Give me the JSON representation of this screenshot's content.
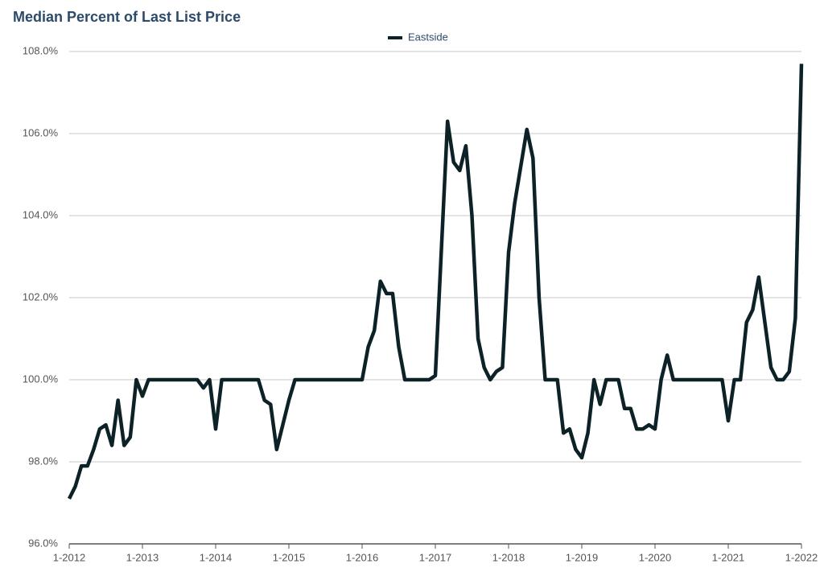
{
  "chart_data": {
    "type": "line",
    "title": "Median Percent of Last List Price",
    "categories": [
      "1-2012",
      null,
      null,
      null,
      null,
      null,
      null,
      null,
      null,
      null,
      null,
      null,
      "1-2013",
      null,
      null,
      null,
      null,
      null,
      null,
      null,
      null,
      null,
      null,
      null,
      "1-2014",
      null,
      null,
      null,
      null,
      null,
      null,
      null,
      null,
      null,
      null,
      null,
      "1-2015",
      null,
      null,
      null,
      null,
      null,
      null,
      null,
      null,
      null,
      null,
      null,
      "1-2016",
      null,
      null,
      null,
      null,
      null,
      null,
      null,
      null,
      null,
      null,
      null,
      "1-2017",
      null,
      null,
      null,
      null,
      null,
      null,
      null,
      null,
      null,
      null,
      null,
      "1-2018",
      null,
      null,
      null,
      null,
      null,
      null,
      null,
      null,
      null,
      null,
      null,
      "1-2019",
      null,
      null,
      null,
      null,
      null,
      null,
      null,
      null,
      null,
      null,
      null,
      "1-2020",
      null,
      null,
      null,
      null,
      null,
      null,
      null,
      null,
      null,
      null,
      null,
      "1-2021",
      null,
      null,
      null,
      null,
      null,
      null,
      null,
      null,
      null,
      null,
      null,
      "1-2022"
    ],
    "series": [
      {
        "name": "Eastside",
        "color": "#0d2227",
        "values": [
          97.1,
          97.4,
          97.9,
          97.9,
          98.3,
          98.8,
          98.9,
          98.4,
          99.5,
          98.4,
          98.6,
          100,
          99.6,
          100,
          100,
          100,
          100,
          100,
          100,
          100,
          100,
          100,
          99.8,
          100,
          98.8,
          100,
          100,
          100,
          100,
          100,
          100,
          100,
          99.5,
          99.4,
          98.3,
          98.9,
          99.5,
          100,
          100,
          100,
          100,
          100,
          100,
          100,
          100,
          100,
          100,
          100,
          100,
          100.8,
          101.2,
          102.4,
          102.1,
          102.1,
          100.8,
          100,
          100,
          100,
          100,
          100,
          100.1,
          103.2,
          106.3,
          105.3,
          105.1,
          105.7,
          104.0,
          101.0,
          100.3,
          100.0,
          100.2,
          100.3,
          103.1,
          104.3,
          105.2,
          106.1,
          105.4,
          102.0,
          100,
          100,
          100,
          98.7,
          98.8,
          98.3,
          98.1,
          98.7,
          100,
          99.4,
          100,
          100,
          100,
          99.3,
          99.3,
          98.8,
          98.8,
          98.9,
          98.8,
          100,
          100.6,
          100,
          100,
          100,
          100,
          100,
          100,
          100,
          100,
          100,
          99.0,
          100,
          100,
          101.4,
          101.7,
          102.5,
          101.4,
          100.3,
          100,
          100,
          100.2,
          101.5,
          107.7
        ]
      }
    ],
    "ylim": [
      96,
      108
    ],
    "yticks": [
      {
        "value": 96,
        "label": "96.0%"
      },
      {
        "value": 98,
        "label": "98.0%"
      },
      {
        "value": 100,
        "label": "100.0%"
      },
      {
        "value": 102,
        "label": "102.0%"
      },
      {
        "value": 104,
        "label": "104.0%"
      },
      {
        "value": 106,
        "label": "106.0%"
      },
      {
        "value": 108,
        "label": "108.0%"
      }
    ],
    "grid": true,
    "legend": "top"
  }
}
